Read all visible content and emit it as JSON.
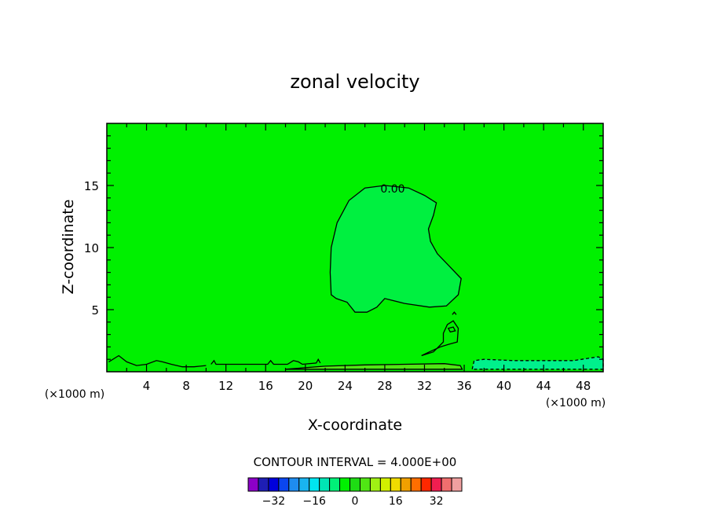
{
  "chart_data": {
    "type": "contour",
    "title": "zonal velocity",
    "xlabel": "X-coordinate",
    "ylabel": "Z-coordinate",
    "x_unit": "(×1000 m)",
    "xlim": [
      0,
      50
    ],
    "ylim": [
      0,
      20
    ],
    "x_ticks": [
      4,
      8,
      12,
      16,
      20,
      24,
      28,
      32,
      36,
      40,
      44,
      48
    ],
    "y_ticks": [
      5,
      10,
      15
    ],
    "contour_label": "0.00",
    "contour_interval_text": "CONTOUR INTERVAL = 4.000E+00",
    "colorbar": {
      "ticks": [
        -32,
        -16,
        0,
        16,
        32
      ],
      "colors": [
        "#8c00c8",
        "#1e1eb4",
        "#0000dc",
        "#0a46f0",
        "#1e8cf0",
        "#19b4f0",
        "#00e6f0",
        "#00e6b4",
        "#00f078",
        "#00f000",
        "#1edc14",
        "#50e614",
        "#a0f014",
        "#d2f000",
        "#f0dc00",
        "#f0a000",
        "#ff6e00",
        "#ff2800",
        "#f01e50",
        "#f06e6e",
        "#f0a0a0"
      ]
    },
    "background_color": "#00f000",
    "regions": [
      {
        "name": "zero-contour-region",
        "color": "#00f040",
        "sign": "positive",
        "points": [
          [
            22.6,
            6.2
          ],
          [
            22.5,
            8.0
          ],
          [
            22.6,
            10.0
          ],
          [
            23.2,
            12.0
          ],
          [
            24.4,
            13.8
          ],
          [
            26.0,
            14.8
          ],
          [
            28.0,
            15.0
          ],
          [
            30.4,
            14.8
          ],
          [
            32.0,
            14.2
          ],
          [
            33.2,
            13.6
          ],
          [
            32.9,
            12.6
          ],
          [
            32.4,
            11.5
          ],
          [
            32.6,
            10.5
          ],
          [
            33.3,
            9.5
          ],
          [
            34.5,
            8.5
          ],
          [
            35.7,
            7.5
          ],
          [
            35.4,
            6.2
          ],
          [
            34.2,
            5.3
          ],
          [
            32.5,
            5.2
          ],
          [
            30.0,
            5.5
          ],
          [
            28.0,
            5.9
          ],
          [
            27.2,
            5.2
          ],
          [
            26.2,
            4.8
          ],
          [
            25.0,
            4.8
          ],
          [
            24.2,
            5.6
          ],
          [
            23.1,
            5.9
          ]
        ]
      },
      {
        "name": "negative-region-right",
        "color": "#00f08c",
        "sign": "negative",
        "points": [
          [
            36.8,
            0.2
          ],
          [
            37.0,
            0.9
          ],
          [
            38.0,
            1.0
          ],
          [
            41.0,
            0.9
          ],
          [
            44.5,
            0.9
          ],
          [
            47.0,
            0.9
          ],
          [
            49.5,
            1.2
          ],
          [
            50.0,
            1.0
          ],
          [
            50.0,
            0.2
          ]
        ]
      },
      {
        "name": "positive-strip-bottom",
        "color": "#50e614",
        "sign": "positive",
        "points": [
          [
            18.0,
            0.2
          ],
          [
            22.0,
            0.45
          ],
          [
            26.0,
            0.55
          ],
          [
            30.0,
            0.6
          ],
          [
            34.0,
            0.65
          ],
          [
            35.6,
            0.5
          ],
          [
            35.8,
            0.2
          ]
        ]
      }
    ],
    "contours": [
      {
        "name": "small-cell",
        "points": [
          [
            33.9,
            3.1
          ],
          [
            34.3,
            3.8
          ],
          [
            34.9,
            4.1
          ],
          [
            35.4,
            3.5
          ],
          [
            35.3,
            2.4
          ],
          [
            34.4,
            2.2
          ],
          [
            33.6,
            2.0
          ],
          [
            32.5,
            1.6
          ],
          [
            31.7,
            1.3
          ],
          [
            32.9,
            1.6
          ],
          [
            33.9,
            2.4
          ]
        ],
        "closed": true
      },
      {
        "name": "small-dot-a",
        "points": [
          [
            34.4,
            3.5
          ],
          [
            34.9,
            3.6
          ],
          [
            35.1,
            3.3
          ],
          [
            34.6,
            3.2
          ]
        ],
        "closed": true
      },
      {
        "name": "small-dot-b",
        "points": [
          [
            34.8,
            4.6
          ],
          [
            35.0,
            4.8
          ],
          [
            35.2,
            4.6
          ]
        ],
        "closed": false
      },
      {
        "name": "bottom-wiggle",
        "points": [
          [
            0.2,
            0.8
          ],
          [
            1.2,
            1.3
          ],
          [
            2.0,
            0.8
          ],
          [
            3.0,
            0.5
          ],
          [
            4.0,
            0.6
          ],
          [
            5.0,
            0.9
          ],
          [
            5.6,
            0.8
          ],
          [
            6.5,
            0.6
          ],
          [
            7.6,
            0.4
          ],
          [
            8.8,
            0.4
          ],
          [
            10.0,
            0.5
          ]
        ],
        "closed": false
      },
      {
        "name": "bottom-bumps",
        "points": [
          [
            10.5,
            0.6
          ],
          [
            10.8,
            0.9
          ],
          [
            11.0,
            0.6
          ],
          [
            16.2,
            0.6
          ],
          [
            16.5,
            0.9
          ],
          [
            16.8,
            0.6
          ],
          [
            18.2,
            0.6
          ],
          [
            18.8,
            0.9
          ],
          [
            19.3,
            0.8
          ],
          [
            19.7,
            0.6
          ],
          [
            21.1,
            0.7
          ],
          [
            21.3,
            1.0
          ],
          [
            21.5,
            0.7
          ]
        ],
        "closed": false
      }
    ]
  }
}
